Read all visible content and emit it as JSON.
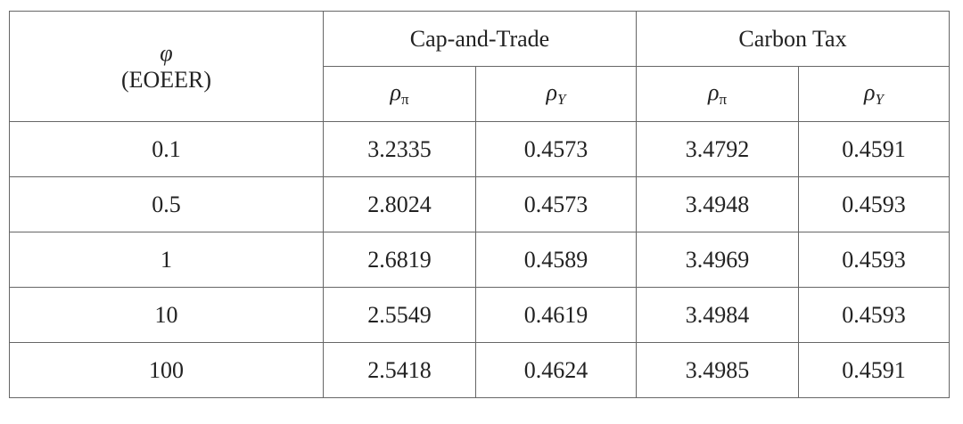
{
  "header": {
    "phi_symbol": "φ",
    "phi_label": "(EOEER)",
    "groups": [
      "Cap-and-Trade",
      "Carbon Tax"
    ],
    "subheaders": [
      {
        "symbol": "ρ",
        "subscript": "π"
      },
      {
        "symbol": "ρ",
        "subscript": "Y"
      },
      {
        "symbol": "ρ",
        "subscript": "π"
      },
      {
        "symbol": "ρ",
        "subscript": "Y"
      }
    ]
  },
  "table": {
    "rows": [
      [
        0.1,
        3.2335,
        0.4573,
        3.4792,
        0.4591
      ],
      [
        0.5,
        2.8024,
        0.4573,
        3.4948,
        0.4593
      ],
      [
        1,
        2.6819,
        0.4589,
        3.4969,
        0.4593
      ],
      [
        10,
        2.5549,
        0.4619,
        3.4984,
        0.4593
      ],
      [
        100,
        2.5418,
        0.4624,
        3.4985,
        0.4591
      ]
    ]
  }
}
